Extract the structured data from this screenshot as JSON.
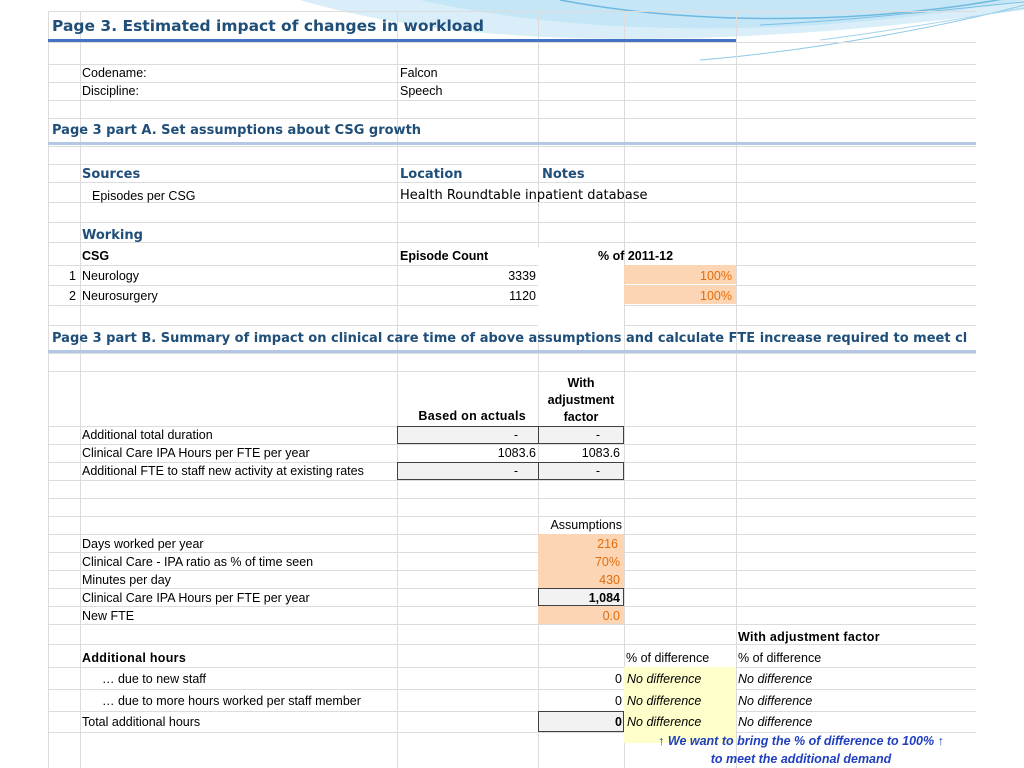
{
  "title": "Page 3. Estimated impact of changes in workload",
  "meta": {
    "codename_label": "Codename:",
    "codename_value": "Falcon",
    "discipline_label": "Discipline:",
    "discipline_value": "Speech"
  },
  "partA": {
    "heading": "Page 3 part A. Set assumptions about CSG growth",
    "sources_header": "Sources",
    "location_header": "Location",
    "notes_header": "Notes",
    "source_item": "Episodes per CSG",
    "source_location": "Health Roundtable inpatient database",
    "working_header": "Working",
    "csg_header": "CSG",
    "episode_header": "Episode Count",
    "pct_header": "% of 2011-12",
    "rows": [
      {
        "num": "1",
        "name": "Neurology",
        "count": "3339",
        "pct": "100%"
      },
      {
        "num": "2",
        "name": "Neurosurgery",
        "count": "1120",
        "pct": "100%"
      }
    ]
  },
  "partB": {
    "heading": "Page 3 part B. Summary of impact on clinical care time of above assumptions and calculate FTE increase required to meet cl",
    "col_actuals": "Based on actuals",
    "col_adj_1": "With",
    "col_adj_2": "adjustment",
    "col_adj_3": "factor",
    "rows": [
      {
        "label": "Additional total duration",
        "actual": "-",
        "adj": "-"
      },
      {
        "label": "Clinical Care IPA Hours per FTE per year",
        "actual": "1083.6",
        "adj": "1083.6"
      },
      {
        "label": "Additional FTE to staff new activity at existing rates",
        "actual": "-",
        "adj": "-"
      }
    ],
    "assumptions_header": "Assumptions",
    "assumptions": [
      {
        "label": "Days worked per year",
        "value": "216"
      },
      {
        "label": "Clinical Care - IPA ratio as % of time seen",
        "value": "70%"
      },
      {
        "label": "Minutes per day",
        "value": "430"
      },
      {
        "label": "Clinical Care IPA Hours per FTE per year",
        "value": "1,084"
      },
      {
        "label": "New FTE",
        "value": "0.0"
      }
    ],
    "with_adj_header": "With adjustment factor",
    "additional_hours_label": "Additional hours",
    "pct_diff_1": "% of difference",
    "pct_diff_2": "% of difference",
    "hours_rows": [
      {
        "label": "… due to new staff",
        "value": "0",
        "diff1": "No difference",
        "diff2": "No difference"
      },
      {
        "label": "… due to more hours worked per staff member",
        "value": "0",
        "diff1": "No difference",
        "diff2": "No difference"
      },
      {
        "label": "Total additional hours",
        "value": "0",
        "diff1": "No difference",
        "diff2": "No difference"
      }
    ],
    "note_line1": "↑ We want to bring the % of difference to 100% ↑",
    "note_line2": "to meet the additional demand"
  },
  "colors": {
    "heading": "#1f4e79",
    "input_fill": "#fcd5b4",
    "output_fill": "#ffffcc",
    "orange_text": "#e36c09",
    "note_text": "#1f3fbf"
  }
}
